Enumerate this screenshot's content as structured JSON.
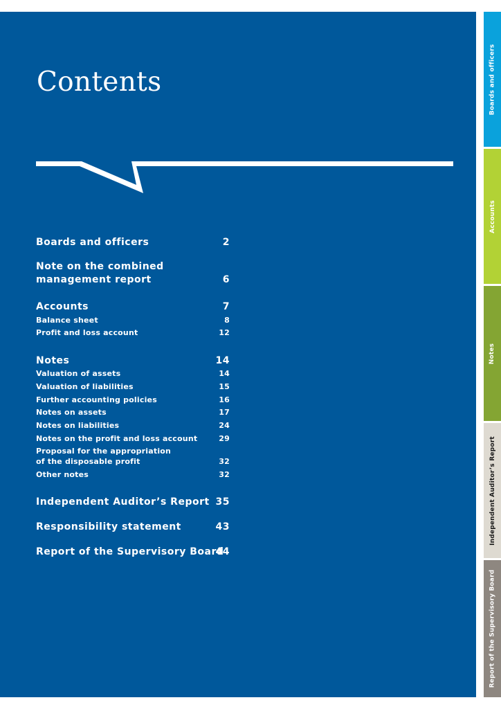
{
  "title": "Contents",
  "colors": {
    "panel": "#00589b",
    "tab_boards": "#0aa2dc",
    "tab_accounts": "#b2d235",
    "tab_notes": "#84a533",
    "tab_auditor": "#dedad1",
    "tab_supervisory": "#8e8780"
  },
  "toc": [
    {
      "label": "Boards and officers",
      "page": "2"
    },
    {
      "label": "Note on the combined",
      "page": ""
    },
    {
      "label": "management report",
      "page": "6"
    },
    {
      "label": "Accounts",
      "page": "7"
    },
    {
      "label": "Balance sheet",
      "page": "8"
    },
    {
      "label": "Profit and loss account",
      "page": "12"
    },
    {
      "label": "Notes",
      "page": "14"
    },
    {
      "label": "Valuation of assets",
      "page": "14"
    },
    {
      "label": "Valuation of liabilities",
      "page": "15"
    },
    {
      "label": "Further accounting policies",
      "page": "16"
    },
    {
      "label": "Notes on assets",
      "page": "17"
    },
    {
      "label": "Notes on liabilities",
      "page": "24"
    },
    {
      "label": "Notes on the profit and loss account",
      "page": "29"
    },
    {
      "label": "Proposal for the appropriation",
      "page": ""
    },
    {
      "label": "of the disposable profit",
      "page": "32"
    },
    {
      "label": "Other notes",
      "page": "32"
    },
    {
      "label": "Independent Auditor’s Report",
      "page": "35"
    },
    {
      "label": "Responsibility statement",
      "page": "43"
    },
    {
      "label": "Report of the Supervisory Board",
      "page": "44"
    }
  ],
  "tabs": [
    {
      "label": "Boards and officers"
    },
    {
      "label": "Accounts"
    },
    {
      "label": "Notes"
    },
    {
      "label": "Independent Auditor’s Report"
    },
    {
      "label": "Report of the Supervisory Board"
    }
  ]
}
